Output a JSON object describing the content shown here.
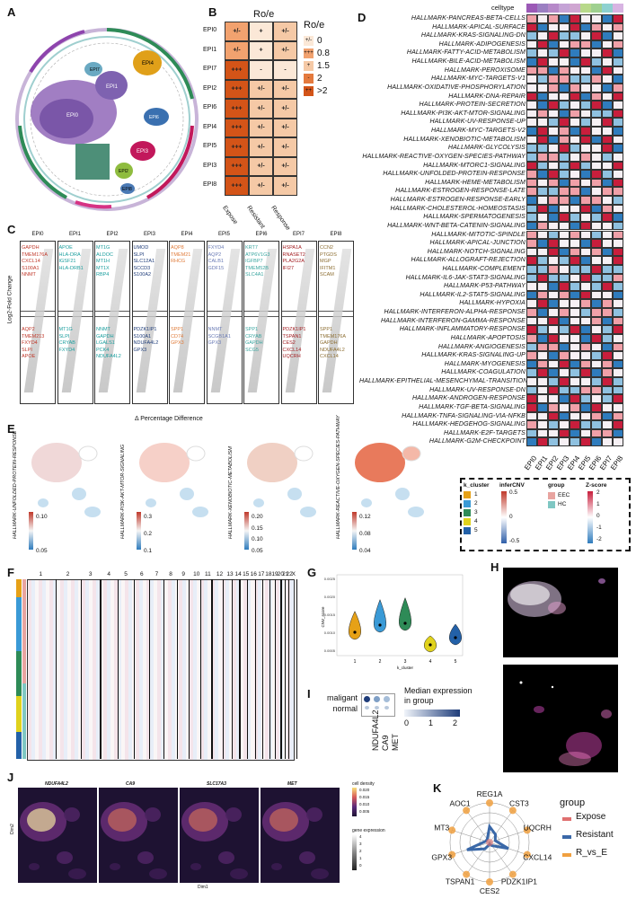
{
  "panels": {
    "A": {
      "letter": "A",
      "inner_labels": [
        "EPI0",
        "EPI1",
        "EPI2",
        "EPI3",
        "EPI4",
        "EPI5",
        "EPI6",
        "EPI7",
        "EPI8"
      ]
    },
    "B": {
      "letter": "B",
      "title": "Ro/e",
      "rows": [
        "EPI0",
        "EPI1",
        "EPI7",
        "EPI2",
        "EPI6",
        "EPI4",
        "EPI5",
        "EPI3",
        "EPI8"
      ],
      "cols": [
        "Expose",
        "Resistant",
        "Response"
      ],
      "symbols": [
        [
          "+/-",
          "+",
          "+/-"
        ],
        [
          "+/-",
          "+",
          "+/-"
        ],
        [
          "+++",
          "-",
          "-"
        ],
        [
          "+++",
          "+/-",
          "+/-"
        ],
        [
          "+++",
          "+/-",
          "+/-"
        ],
        [
          "+++",
          "+/-",
          "+/-"
        ],
        [
          "+++",
          "+/-",
          "+/-"
        ],
        [
          "+++",
          "+/-",
          "+/-"
        ],
        [
          "+++",
          "+/-",
          "+/-"
        ]
      ],
      "levels": [
        [
          2,
          0,
          1
        ],
        [
          2,
          0,
          1
        ],
        [
          4,
          0,
          0
        ],
        [
          4,
          1,
          1
        ],
        [
          4,
          1,
          1
        ],
        [
          4,
          1,
          1
        ],
        [
          4,
          1,
          1
        ],
        [
          4,
          1,
          1
        ],
        [
          4,
          1,
          1
        ]
      ],
      "legend_title": "Ro/e",
      "legend": [
        {
          "sym": "+/-",
          "val": "0"
        },
        {
          "sym": "+++",
          "val": "0.8"
        },
        {
          "sym": "+",
          "val": "1.5"
        },
        {
          "sym": "-",
          "val": "2"
        },
        {
          "sym": "++",
          "val": ">2"
        }
      ]
    },
    "C": {
      "letter": "C",
      "ylabel": "Log2-Fold Change",
      "xlabel": "Δ Percentage Difference",
      "clusters": [
        "EPI0",
        "EPI1",
        "EPI2",
        "EPI3",
        "EPI4",
        "EPI5",
        "EPI6",
        "EPI7",
        "EPI8"
      ],
      "up_genes": [
        [
          "GAPDH",
          "TMEM176A",
          "CXCL14",
          "S100A1",
          "NNMT"
        ],
        [
          "APOE",
          "HLA-DRA",
          "IGSF21",
          "HLA-DRB1"
        ],
        [
          "MT1G",
          "ALDOC",
          "MT1H",
          "MT1X",
          "RBP4"
        ],
        [
          "UMOD",
          "SLPI",
          "SLC12A1",
          "SCCD3",
          "S100A2"
        ],
        [
          "AQP8",
          "TMEM21",
          "RHCG"
        ],
        [
          "FXYD4",
          "AQP2",
          "CALB1",
          "GDF15"
        ],
        [
          "KRT7",
          "ATP6V1G3",
          "IGFBP7",
          "TMEM52B",
          "SLC4A1"
        ],
        [
          "HSPA1A",
          "RNASET2",
          "PLA2G2A",
          "IFI27"
        ],
        [
          "CCN2",
          "PTGDS",
          "MGP",
          "IFITM1",
          "SCAM"
        ]
      ],
      "down_genes": [
        [
          "AQP2",
          "TMEM213",
          "FXYD4",
          "SLPI",
          "APOE"
        ],
        [
          "MT1G",
          "SLPI",
          "CRYAB",
          "FXYD4"
        ],
        [
          "NNMT",
          "GAPDH",
          "LGALS1",
          "PCK4",
          "NDUFA4L2"
        ],
        [
          "PDZK1IP1",
          "S100A1",
          "NDUFA4L2",
          "GPX3"
        ],
        [
          "SPP1",
          "CD74",
          "GPX3"
        ],
        [
          "NNMT",
          "SCGB1A1",
          "GPX3"
        ],
        [
          "SPP1",
          "CRYAB",
          "GAPDH",
          "SCG5"
        ],
        [
          "PDZK1IP1",
          "TSPAN1",
          "CES2",
          "CXCL14",
          "UQCRH"
        ],
        [
          "SPP1",
          "TMEM176A",
          "GAPDH",
          "NDUFA4L2",
          "CXCL14"
        ]
      ],
      "up_colors": [
        "#c0392b",
        "#1a9e9e",
        "#1a9e9e",
        "#1f3d7a",
        "#e07b39",
        "#6a7bb5",
        "#3aa6a0",
        "#a31e22",
        "#8c6d31"
      ]
    },
    "D": {
      "letter": "D",
      "legend_label": "celltype",
      "col_labels": [
        "EPI0",
        "EPI1",
        "EPI2",
        "EPI3",
        "EPI4",
        "EPI5",
        "EPI6",
        "EPI7",
        "EPI8"
      ],
      "celltype_colors": [
        "#9b59b6",
        "#9b7fc2",
        "#b689c9",
        "#c5a3d6",
        "#cfa6d1",
        "#b8d98a",
        "#9fd08f",
        "#8ed1d0",
        "#d8b4e2"
      ],
      "pathways": [
        "HALLMARK-PANCREAS-BETA-CELLS",
        "HALLMARK-APICAL-SURFACE",
        "HALLMARK-KRAS-SIGNALING-DN",
        "HALLMARK-ADIPOGENESIS",
        "HALLMARK-FATTY-ACID-METABOLISM",
        "HALLMARK-BILE-ACID-METABOLISM",
        "HALLMARK-PEROXISOME",
        "HALLMARK-MYC-TARGETS-V1",
        "HALLMARK-OXIDATIVE-PHOSPHORYLATION",
        "HALLMARK-DNA-REPAIR",
        "HALLMARK-PROTEIN-SECRETION",
        "HALLMARK-PI3K-AKT-MTOR-SIGNALING",
        "HALLMARK-UV-RESPONSE-UP",
        "HALLMARK-MYC-TARGETS-V2",
        "HALLMARK-XENOBIOTIC-METABOLISM",
        "HALLMARK-GLYCOLYSIS",
        "HALLMARK-REACTIVE-OXYGEN-SPECIES-PATHWAY",
        "HALLMARK-MTORC1-SIGNALING",
        "HALLMARK-UNFOLDED-PROTEIN-RESPONSE",
        "HALLMARK-HEME-METABOLISM",
        "HALLMARK-ESTROGEN-RESPONSE-LATE",
        "HALLMARK-ESTROGEN-RESPONSE-EARLY",
        "HALLMARK-CHOLESTEROL-HOMEOSTASIS",
        "HALLMARK-SPERMATOGENESIS",
        "HALLMARK-WNT-BETA-CATENIN-SIGNALING",
        "HALLMARK-MITOTIC-SPINDLE",
        "HALLMARK-APICAL-JUNCTION",
        "HALLMARK-NOTCH-SIGNALING",
        "HALLMARK-ALLOGRAFT-REJECTION",
        "HALLMARK-COMPLEMENT",
        "HALLMARK-IL6-JAK-STAT3-SIGNALING",
        "HALLMARK-P53-PATHWAY",
        "HALLMARK-IL2-STAT5-SIGNALING",
        "HALLMARK-HYPOXIA",
        "HALLMARK-INTERFERON-ALPHA-RESPONSE",
        "HALLMARK-INTERFERON-GAMMA-RESPONSE",
        "HALLMARK-INFLAMMATORY-RESPONSE",
        "HALLMARK-APOPTOSIS",
        "HALLMARK-ANGIOGENESIS",
        "HALLMARK-KRAS-SIGNALING-UP",
        "HALLMARK-MYOGENESIS",
        "HALLMARK-COAGULATION",
        "HALLMARK-EPITHELIAL-MESENCHYMAL-TRANSITION",
        "HALLMARK-UV-RESPONSE-DN",
        "HALLMARK-ANDROGEN-RESPONSE",
        "HALLMARK-TGF-BETA-SIGNALING",
        "HALLMARK-TNFA-SIGNALING-VIA-NFKB",
        "HALLMARK-HEDGEHOG-SIGNALING",
        "HALLMARK-E2F-TARGETS",
        "HALLMARK-G2M-CHECKPOINT"
      ]
    },
    "E": {
      "letter": "E",
      "plots": [
        {
          "title": "HALLMARK-UNFOLDED-PROTEIN-RESPONSE",
          "ticks": [
            "0.10",
            "0.05"
          ]
        },
        {
          "title": "HALLMARK-PI3K-AKT-MTOR-SIGNALING",
          "ticks": [
            "0.3",
            "0.2",
            "0.1"
          ]
        },
        {
          "title": "HALLMARK-XENOBIOTIC-METABOLISM",
          "ticks": [
            "0.20",
            "0.15",
            "0.10",
            "0.05"
          ]
        },
        {
          "title": "HALLMARK-REACTIVE-OXYGEN-SPECIES-PATHWAY",
          "ticks": [
            "0.12",
            "0.08",
            "0.04"
          ]
        }
      ]
    },
    "F": {
      "letter": "F",
      "legend_kcluster": "k_cluster",
      "kclusters": [
        "1",
        "2",
        "3",
        "4",
        "5"
      ],
      "kcolors": [
        "#e6a117",
        "#3a9ad6",
        "#2e8b57",
        "#e0d21d",
        "#2361a8"
      ],
      "legend_infercnv": "inferCNV",
      "infercnv_ticks": [
        "0.5",
        "0",
        "-0.5"
      ],
      "legend_group": "group",
      "groups": [
        "EEC",
        "HC"
      ],
      "group_colors": [
        "#e8a4a0",
        "#7fc7c3"
      ],
      "legend_z": "Z-score",
      "z_ticks": [
        "2",
        "1",
        "0",
        "-1",
        "-2"
      ],
      "chromosomes": [
        "1",
        "2",
        "3",
        "4",
        "5",
        "6",
        "7",
        "8",
        "9",
        "10",
        "11",
        "12",
        "13",
        "14",
        "15",
        "16",
        "17",
        "18",
        "19",
        "20",
        "21",
        "22",
        "X"
      ]
    },
    "G": {
      "letter": "G",
      "ylabel": "CNV_score",
      "xlabel": "k_cluster",
      "yticks": [
        "0.0025",
        "0.0020",
        "0.0015",
        "0.0010",
        "0.0005"
      ],
      "xticks": [
        "1",
        "2",
        "3",
        "4",
        "5"
      ]
    },
    "H": {
      "letter": "H"
    },
    "I": {
      "letter": "I",
      "rows": [
        "maligant",
        "normal"
      ],
      "genes": [
        "NDUFA4L2",
        "CA9",
        "MET"
      ],
      "legend_title": "Median expression\nin group",
      "ticks": [
        "0",
        "1",
        "2"
      ]
    },
    "J": {
      "letter": "J",
      "genes": [
        "NDUFA4L2",
        "CA9",
        "SLC17A3",
        "MET"
      ],
      "ylabel": "Dim2",
      "xlabel": "Dim1",
      "density_label": "cell density",
      "density_ticks": [
        "0.020",
        "0.015",
        "0.010",
        "0.005"
      ],
      "expr_label": "gene expression",
      "expr_ticks": [
        "4",
        "3",
        "2",
        "1",
        "0"
      ]
    },
    "K": {
      "letter": "K",
      "axes": [
        "REG1A",
        "CST3",
        "UQCRH",
        "CXCL14",
        "PDZK1IP1",
        "CES2",
        "TSPAN1",
        "GPX3",
        "MT3",
        "AOC1"
      ],
      "legend_title": "group",
      "groups": [
        "Expose",
        "Resistant",
        "R_vs_E"
      ],
      "group_colors": [
        "#e07070",
        "#3a68a8",
        "#f0a040"
      ]
    }
  }
}
